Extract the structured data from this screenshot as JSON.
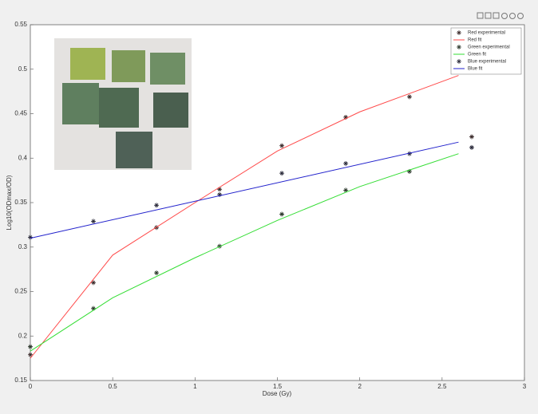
{
  "chart_data": {
    "type": "line",
    "x_label": "Dose (Gy)",
    "y_label": "Log10(ODmax/OD)",
    "xlim": [
      0,
      3
    ],
    "xticks": [
      0,
      0.5,
      1,
      1.5,
      2,
      2.5,
      3
    ],
    "ylim": [
      0.15,
      0.55
    ],
    "yticks": [
      0.15,
      0.2,
      0.25,
      0.3,
      0.35,
      0.4,
      0.45,
      0.5,
      0.55
    ],
    "series": [
      {
        "name": "Red experimental",
        "kind": "scatter",
        "color": "#3a2a2a",
        "x": [
          0,
          0.383,
          0.766,
          1.149,
          1.527,
          1.915,
          2.302,
          2.68
        ],
        "values": [
          0.179,
          0.26,
          0.322,
          0.365,
          0.414,
          0.446,
          0.469,
          0.424
        ]
      },
      {
        "name": "Red fit",
        "kind": "line",
        "color": "#ff4a4a",
        "x": [
          0,
          0.5,
          1,
          1.5,
          2,
          2.6
        ],
        "values": [
          0.175,
          0.291,
          0.35,
          0.408,
          0.452,
          0.493
        ]
      },
      {
        "name": "Green experimental",
        "kind": "scatter",
        "color": "#2e3a2e",
        "x": [
          0,
          0.383,
          0.766,
          1.149,
          1.527,
          1.915,
          2.302
        ],
        "values": [
          0.188,
          0.231,
          0.271,
          0.301,
          0.337,
          0.364,
          0.385
        ]
      },
      {
        "name": "Green fit",
        "kind": "line",
        "color": "#33dd33",
        "x": [
          0,
          0.5,
          1,
          1.5,
          2,
          2.6
        ],
        "values": [
          0.183,
          0.243,
          0.288,
          0.33,
          0.368,
          0.405
        ]
      },
      {
        "name": "Blue experimental",
        "kind": "scatter",
        "color": "#2a2a3a",
        "x": [
          0,
          0.383,
          0.766,
          1.149,
          1.527,
          1.915,
          2.302,
          2.68
        ],
        "values": [
          0.311,
          0.329,
          0.347,
          0.359,
          0.383,
          0.394,
          0.405,
          0.412
        ]
      },
      {
        "name": "Blue fit",
        "kind": "line",
        "color": "#2222cc",
        "x": [
          0,
          2.6
        ],
        "values": [
          0.31,
          0.418
        ]
      }
    ]
  }
}
